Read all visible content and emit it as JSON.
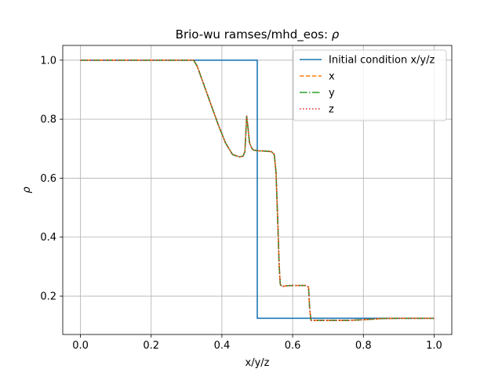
{
  "chart_data": {
    "type": "line",
    "title": "Brio-wu ramses/mhd_eos: ",
    "title_symbol": "ρ",
    "xlabel": "x/y/z",
    "ylabel": "ρ",
    "xlim": [
      -0.05,
      1.05
    ],
    "ylim": [
      0.07,
      1.05
    ],
    "xticks": [
      0.0,
      0.2,
      0.4,
      0.6,
      0.8,
      1.0
    ],
    "xtick_labels": [
      "0.0",
      "0.2",
      "0.4",
      "0.6",
      "0.8",
      "1.0"
    ],
    "yticks": [
      0.2,
      0.4,
      0.6,
      0.8,
      1.0
    ],
    "ytick_labels": [
      "0.2",
      "0.4",
      "0.6",
      "0.8",
      "1.0"
    ],
    "grid": true,
    "legend_position": "top-right",
    "series": [
      {
        "name": "Initial condition x/y/z",
        "color": "#1f77b4",
        "dash": "solid",
        "x": [
          0.0,
          0.5,
          0.5,
          1.0
        ],
        "y": [
          1.0,
          1.0,
          0.125,
          0.125
        ]
      },
      {
        "name": "x",
        "color": "#ff7f0e",
        "dash": "dashed",
        "x": [
          0.0,
          0.32,
          0.33,
          0.36,
          0.39,
          0.41,
          0.43,
          0.45,
          0.46,
          0.465,
          0.47,
          0.473,
          0.478,
          0.485,
          0.49,
          0.5,
          0.52,
          0.54,
          0.548,
          0.553,
          0.558,
          0.562,
          0.565,
          0.57,
          0.58,
          0.6,
          0.62,
          0.64,
          0.645,
          0.648,
          0.652,
          0.66,
          0.7,
          0.76,
          0.8,
          0.85,
          0.9,
          1.0
        ],
        "y": [
          1.0,
          1.0,
          0.98,
          0.88,
          0.78,
          0.72,
          0.68,
          0.672,
          0.675,
          0.69,
          0.81,
          0.78,
          0.72,
          0.7,
          0.695,
          0.693,
          0.692,
          0.69,
          0.68,
          0.62,
          0.45,
          0.3,
          0.24,
          0.232,
          0.235,
          0.236,
          0.236,
          0.236,
          0.23,
          0.16,
          0.118,
          0.118,
          0.118,
          0.118,
          0.12,
          0.124,
          0.125,
          0.125
        ]
      },
      {
        "name": "y",
        "color": "#2ca02c",
        "dash": "dashdot",
        "x": [
          0.0,
          0.32,
          0.33,
          0.36,
          0.39,
          0.41,
          0.43,
          0.45,
          0.46,
          0.465,
          0.47,
          0.473,
          0.478,
          0.485,
          0.49,
          0.5,
          0.52,
          0.54,
          0.548,
          0.553,
          0.558,
          0.562,
          0.565,
          0.57,
          0.58,
          0.6,
          0.62,
          0.64,
          0.645,
          0.648,
          0.652,
          0.66,
          0.7,
          0.76,
          0.8,
          0.85,
          0.9,
          1.0
        ],
        "y": [
          1.0,
          1.0,
          0.98,
          0.88,
          0.78,
          0.72,
          0.68,
          0.672,
          0.675,
          0.69,
          0.81,
          0.78,
          0.72,
          0.7,
          0.695,
          0.693,
          0.692,
          0.69,
          0.68,
          0.62,
          0.45,
          0.3,
          0.24,
          0.232,
          0.235,
          0.236,
          0.236,
          0.236,
          0.23,
          0.16,
          0.118,
          0.118,
          0.118,
          0.118,
          0.12,
          0.124,
          0.125,
          0.125
        ]
      },
      {
        "name": "z",
        "color": "#d62728",
        "dash": "dotted",
        "x": [
          0.0,
          0.32,
          0.33,
          0.36,
          0.39,
          0.41,
          0.43,
          0.45,
          0.46,
          0.465,
          0.47,
          0.473,
          0.478,
          0.485,
          0.49,
          0.5,
          0.52,
          0.54,
          0.548,
          0.553,
          0.558,
          0.562,
          0.565,
          0.57,
          0.58,
          0.6,
          0.62,
          0.64,
          0.645,
          0.648,
          0.652,
          0.66,
          0.7,
          0.76,
          0.8,
          0.85,
          0.9,
          1.0
        ],
        "y": [
          1.0,
          1.0,
          0.98,
          0.88,
          0.78,
          0.72,
          0.68,
          0.672,
          0.675,
          0.69,
          0.81,
          0.78,
          0.72,
          0.7,
          0.695,
          0.693,
          0.692,
          0.69,
          0.68,
          0.62,
          0.45,
          0.3,
          0.24,
          0.232,
          0.235,
          0.236,
          0.236,
          0.236,
          0.23,
          0.16,
          0.118,
          0.118,
          0.118,
          0.118,
          0.12,
          0.124,
          0.125,
          0.125
        ]
      }
    ]
  }
}
